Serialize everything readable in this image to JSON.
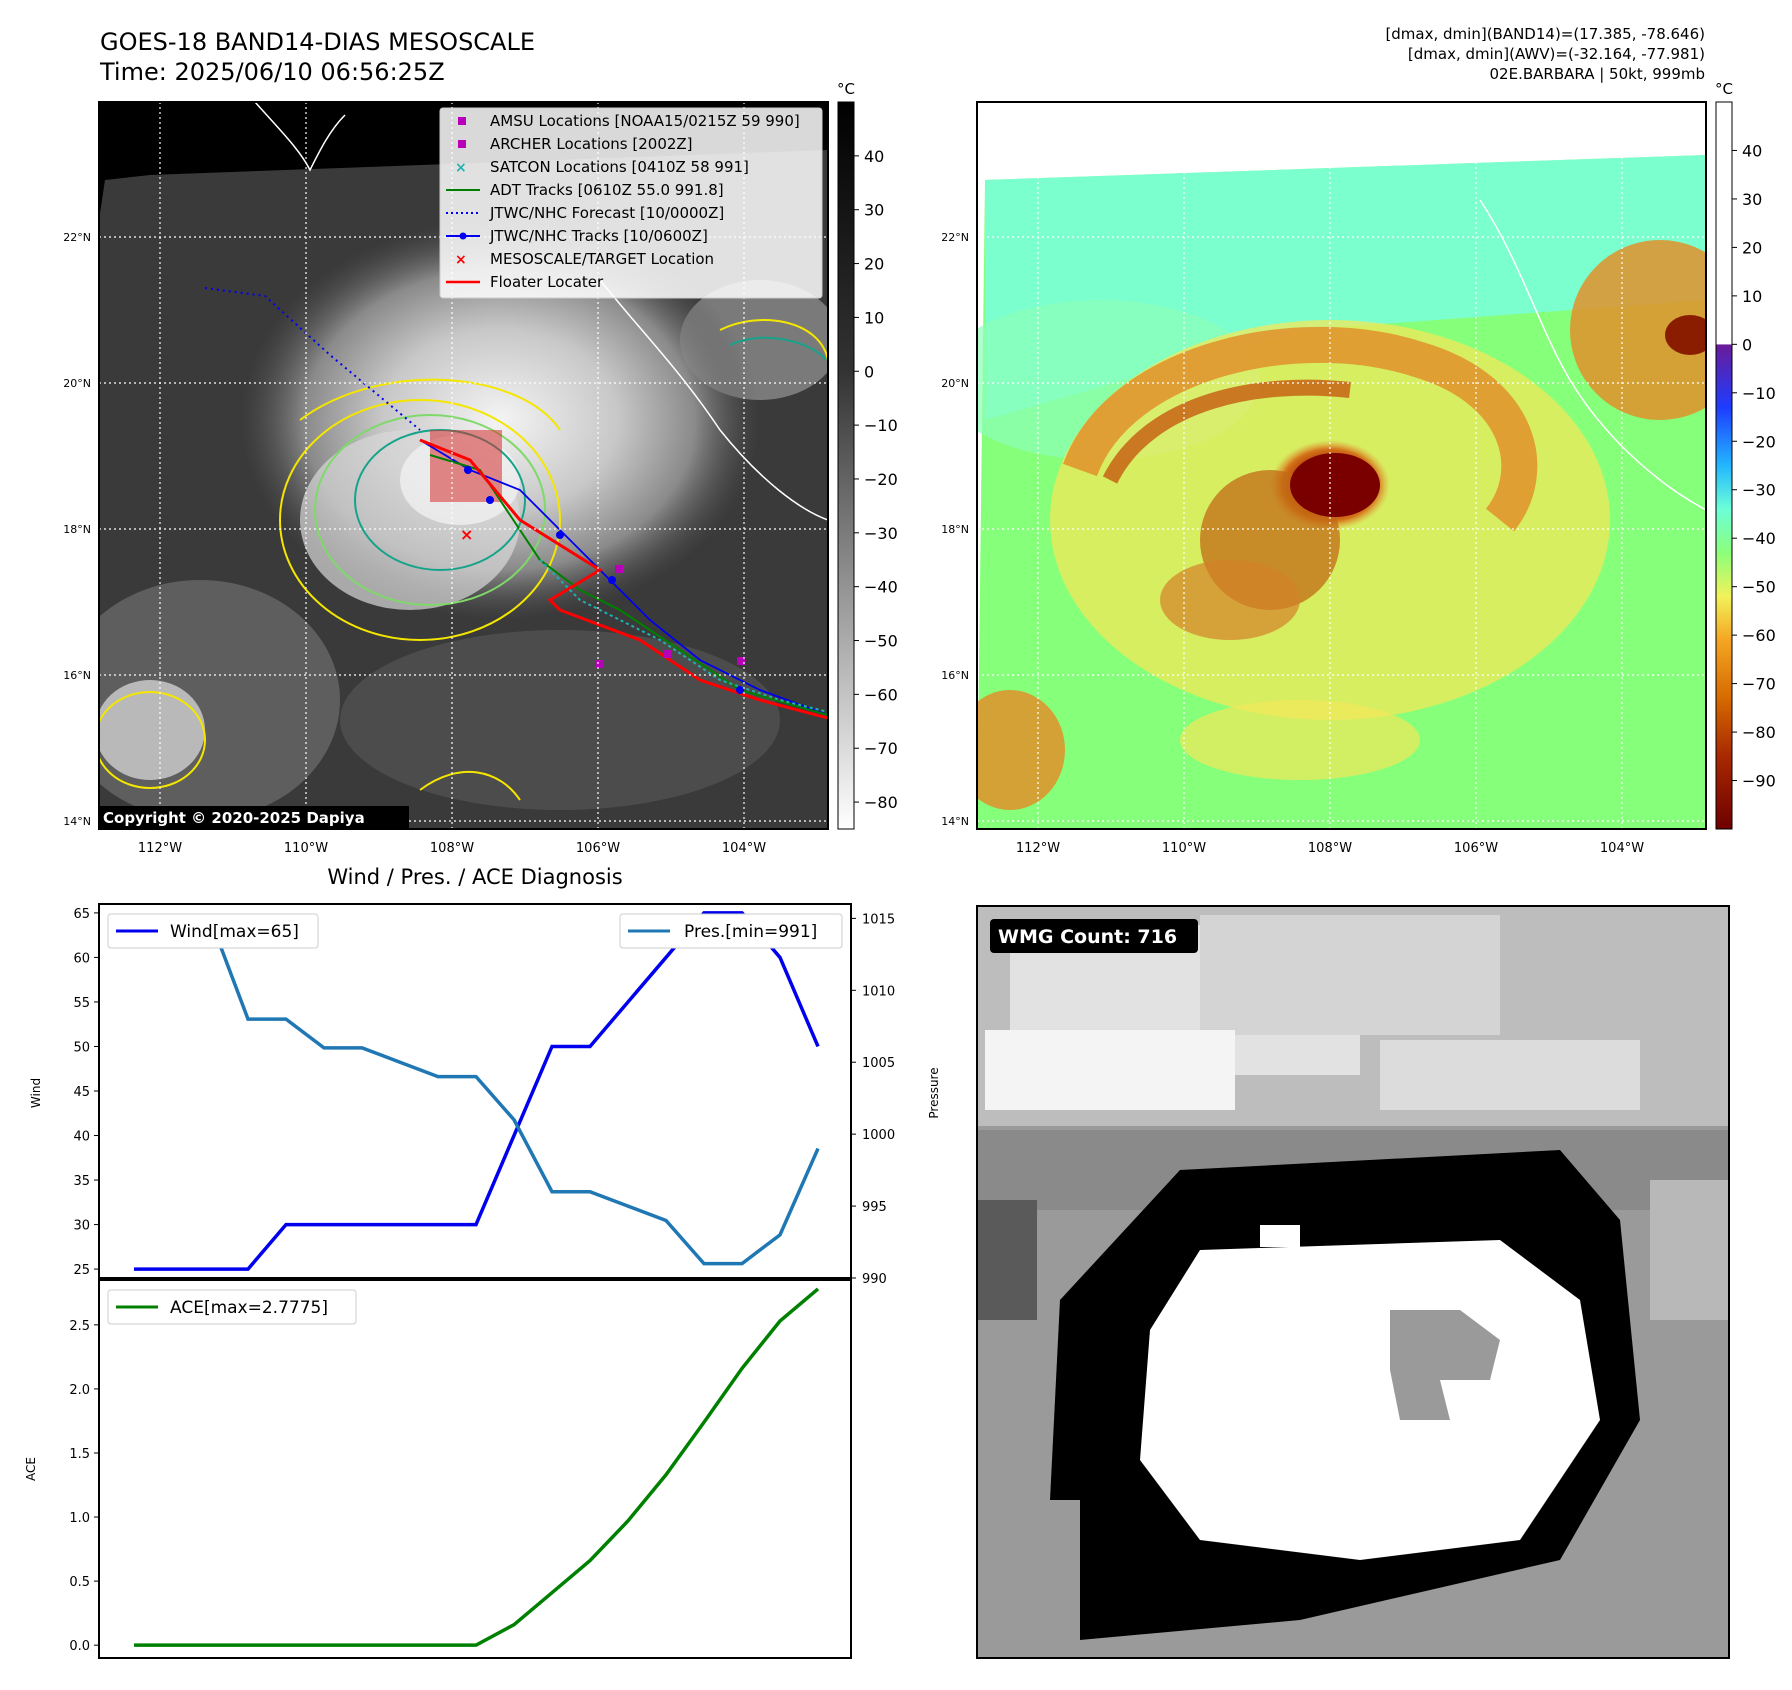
{
  "header": {
    "title": "GOES-18 BAND14-DIAS MESOSCALE",
    "time": "Time: 2025/06/10 06:56:25Z",
    "info_lines": [
      "[dmax, dmin](BAND14)=(17.385, -78.646)",
      "[dmax, dmin](AWV)=(-32.164, -77.981)",
      "02E.BARBARA | 50kt, 999mb"
    ]
  },
  "map": {
    "lat_labels": [
      "22°N",
      "20°N",
      "18°N",
      "16°N",
      "14°N"
    ],
    "lon_labels": [
      "112°W",
      "110°W",
      "108°W",
      "106°W",
      "104°W"
    ],
    "copyright": "Copyright © 2020-2025 Dapiya",
    "colorbar_unit": "°C"
  },
  "legend": {
    "items": [
      {
        "label": "AMSU Locations [NOAA15/0215Z 59 990]",
        "symbol": "square",
        "color": "#b800b8"
      },
      {
        "label": "ARCHER Locations [2002Z]",
        "symbol": "square",
        "color": "#b800b8"
      },
      {
        "label": "SATCON Locations [0410Z 58 991]",
        "symbol": "x",
        "color": "#20b0b0"
      },
      {
        "label": "ADT Tracks [0610Z 55.0 991.8]",
        "symbol": "line",
        "color": "#008000"
      },
      {
        "label": "JTWC/NHC Forecast [10/0000Z]",
        "symbol": "dotted",
        "color": "#0000ff"
      },
      {
        "label": "JTWC/NHC Tracks [10/0600Z]",
        "symbol": "line-dot",
        "color": "#0000ff"
      },
      {
        "label": "MESOSCALE/TARGET Location",
        "symbol": "x",
        "color": "#ff0000"
      },
      {
        "label": "Floater Locater",
        "symbol": "line",
        "color": "#ff0000"
      }
    ]
  },
  "colorbars": {
    "ir_ticks": [
      40,
      30,
      20,
      10,
      0,
      -10,
      -20,
      -30,
      -40,
      -50,
      -60,
      -70,
      -80
    ],
    "ir_range": [
      -85,
      50
    ],
    "awv_ticks": [
      40,
      30,
      20,
      10,
      0,
      -10,
      -20,
      -30,
      -40,
      -50,
      -60,
      -70,
      -80,
      -90
    ],
    "awv_range": [
      -100,
      50
    ],
    "awv_tick_labels": [
      "40",
      "30",
      "20",
      "10",
      "0",
      "−10",
      "−20",
      "−30",
      "−40",
      "−50",
      "−60",
      "−70",
      "−80",
      "−90"
    ],
    "ir_tick_labels": [
      "40",
      "30",
      "20",
      "10",
      "0",
      "−10",
      "−20",
      "−30",
      "−40",
      "−50",
      "−60",
      "−70",
      "−80"
    ]
  },
  "wmg": {
    "label": "WMG Count: 716"
  },
  "chart_data": [
    {
      "type": "line",
      "title": "Wind / Pres. / ACE Diagnosis",
      "x": [
        0,
        1,
        2,
        3,
        4,
        5,
        6,
        7,
        8,
        9,
        10,
        11,
        12,
        13,
        14,
        15,
        16,
        17,
        18
      ],
      "series": [
        {
          "name": "Wind[max=65]",
          "axis": "left",
          "color": "#0000ee",
          "values": [
            25,
            25,
            25,
            25,
            30,
            30,
            30,
            30,
            30,
            30,
            40,
            50,
            50,
            55,
            60,
            65,
            65,
            60,
            50
          ]
        },
        {
          "name": "Pres.[min=991]",
          "axis": "right",
          "color": "#1f77b4",
          "values": [
            1015,
            1015,
            1015,
            1008,
            1008,
            1006,
            1006,
            1005,
            1004,
            1004,
            1001,
            996,
            996,
            995,
            994,
            991,
            991,
            993,
            999
          ]
        }
      ],
      "ylabel": "Wind",
      "y2label": "Pressure",
      "ylim": [
        24,
        66
      ],
      "y2lim": [
        990,
        1016
      ],
      "yticks": [
        25,
        30,
        35,
        40,
        45,
        50,
        55,
        60,
        65
      ],
      "y2ticks": [
        990,
        995,
        1000,
        1005,
        1010,
        1015
      ]
    },
    {
      "type": "line",
      "x": [
        0,
        1,
        2,
        3,
        4,
        5,
        6,
        7,
        8,
        9,
        10,
        11,
        12,
        13,
        14,
        15,
        16,
        17,
        18
      ],
      "series": [
        {
          "name": "ACE[max=2.7775]",
          "color": "#008000",
          "values": [
            0,
            0,
            0,
            0,
            0,
            0,
            0,
            0,
            0,
            0,
            0.16,
            0.41,
            0.66,
            0.97,
            1.33,
            1.74,
            2.16,
            2.53,
            2.78
          ]
        }
      ],
      "ylabel": "ACE",
      "ylim": [
        -0.1,
        2.85
      ],
      "yticks": [
        0.0,
        0.5,
        1.0,
        1.5,
        2.0,
        2.5
      ],
      "ytick_labels": [
        "0.0",
        "0.5",
        "1.0",
        "1.5",
        "2.0",
        "2.5"
      ]
    }
  ]
}
